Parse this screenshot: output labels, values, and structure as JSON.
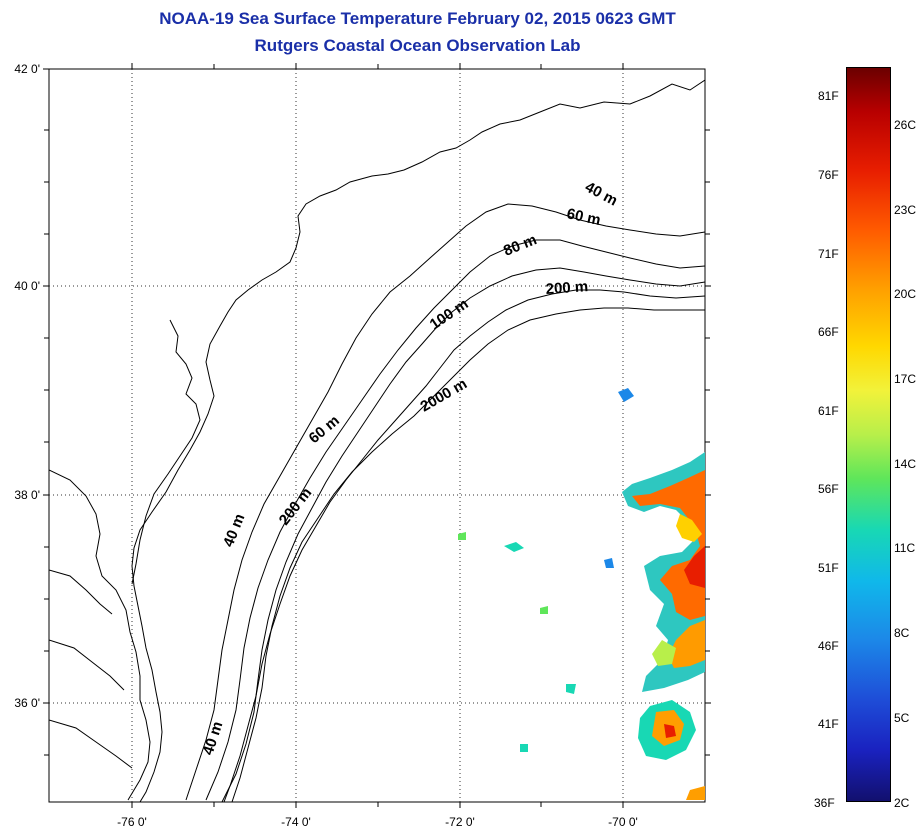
{
  "title": {
    "line1": "NOAA-19 Sea Surface Temperature February 02, 2015 0623 GMT",
    "line2": "Rutgers Coastal Ocean Observation Lab"
  },
  "map": {
    "lat_ticks": [
      "42 0'",
      "40 0'",
      "38 0'",
      "36 0'"
    ],
    "lon_ticks": [
      "-76 0'",
      "-74 0'",
      "-72 0'",
      "-70 0'"
    ],
    "lat_range": [
      35,
      42
    ],
    "lon_range": [
      -77,
      -69
    ],
    "contour_labels": [
      "40 m",
      "60 m",
      "80 m",
      "200 m",
      "100 m",
      "2000 m",
      "60 m",
      "40 m",
      "200 m",
      "40 m"
    ]
  },
  "colorbar": {
    "fahrenheit_labels": [
      "81F",
      "76F",
      "71F",
      "66F",
      "61F",
      "56F",
      "51F",
      "46F",
      "41F",
      "36F"
    ],
    "celsius_labels": [
      "26C",
      "23C",
      "20C",
      "17C",
      "14C",
      "11C",
      "8C",
      "5C",
      "2C"
    ],
    "colors": [
      "#6b0000",
      "#e81e00",
      "#ff9e00",
      "#f2f23a",
      "#5fe65a",
      "#18d8b4",
      "#1c88e8",
      "#1a22c0",
      "#12106e"
    ]
  }
}
